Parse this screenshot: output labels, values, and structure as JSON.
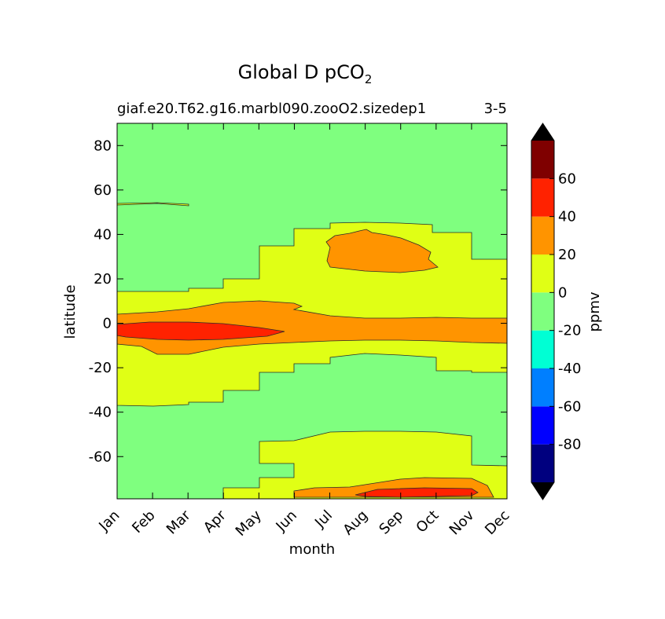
{
  "chart_data": {
    "type": "contourf",
    "title": "Global D pCO",
    "title_subscript": "2",
    "subtitle_left": "giaf.e20.T62.g16.marbl090.zooO2.sizedep1",
    "subtitle_right": "3-5",
    "xlabel": "month",
    "ylabel": "latitude",
    "x_categories": [
      "Jan",
      "Feb",
      "Mar",
      "Apr",
      "May",
      "Jun",
      "Jul",
      "Aug",
      "Sep",
      "Oct",
      "Nov",
      "Dec"
    ],
    "y_ticks": [
      80,
      60,
      40,
      20,
      0,
      -20,
      -40,
      -60
    ],
    "ylim": [
      -79,
      90
    ],
    "colorbar": {
      "label": "ppmv",
      "levels": [
        -100,
        -80,
        -60,
        -40,
        -20,
        0,
        20,
        40,
        60,
        80
      ],
      "tick_labels": [
        "60",
        "40",
        "20",
        "0",
        "-20",
        "-40",
        "-60",
        "-80"
      ],
      "tick_values": [
        60,
        40,
        20,
        0,
        -20,
        -40,
        -60,
        -80
      ],
      "colors": [
        "#00007f",
        "#0000ff",
        "#007fff",
        "#00ffd4",
        "#7fff7f",
        "#e0ff15",
        "#ff9400",
        "#ff2200",
        "#7f0000"
      ],
      "extend_low_color": "#000000",
      "extend_high_color": "#000000"
    },
    "bands": [
      {
        "name": "0-20 ppmv",
        "color": "#e0ff15"
      },
      {
        "name": "20-40 ppmv",
        "color": "#ff9400"
      },
      {
        "name": "40-60 ppmv",
        "color": "#ff2200"
      },
      {
        "name": "-20-0 ppmv",
        "color": "#7fff7f"
      }
    ]
  }
}
